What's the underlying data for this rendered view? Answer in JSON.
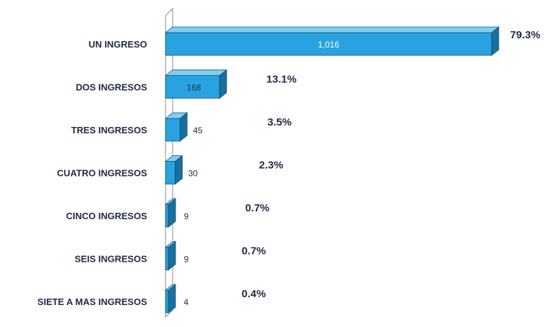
{
  "chart_data": {
    "type": "bar",
    "orientation": "horizontal",
    "categories": [
      "UN INGRESO",
      "DOS INGRESOS",
      "TRES INGRESOS",
      "CUATRO INGRESOS",
      "CINCO INGRESOS",
      "SEIS INGRESOS",
      "SIETE A MAS INGRESOS"
    ],
    "values": [
      1016,
      168,
      45,
      30,
      9,
      9,
      4
    ],
    "value_labels": [
      "1,016",
      "168",
      "45",
      "30",
      "9",
      "9",
      "4"
    ],
    "percent_labels": [
      "79.3%",
      "13.1%",
      "3.5%",
      "2.3%",
      "0.7%",
      "0.7%",
      "0.4%"
    ],
    "xlim": [
      0,
      1016
    ],
    "grid": false,
    "legend": "none",
    "colors": {
      "bar_front": "#29a3e0",
      "bar_top": "#7fcff2",
      "bar_side": "#1b6f9c",
      "bar_edge": "#0e4f75",
      "text": "#1f2a44",
      "value_on_bar": "#ffffff",
      "axis": "#888888"
    }
  }
}
